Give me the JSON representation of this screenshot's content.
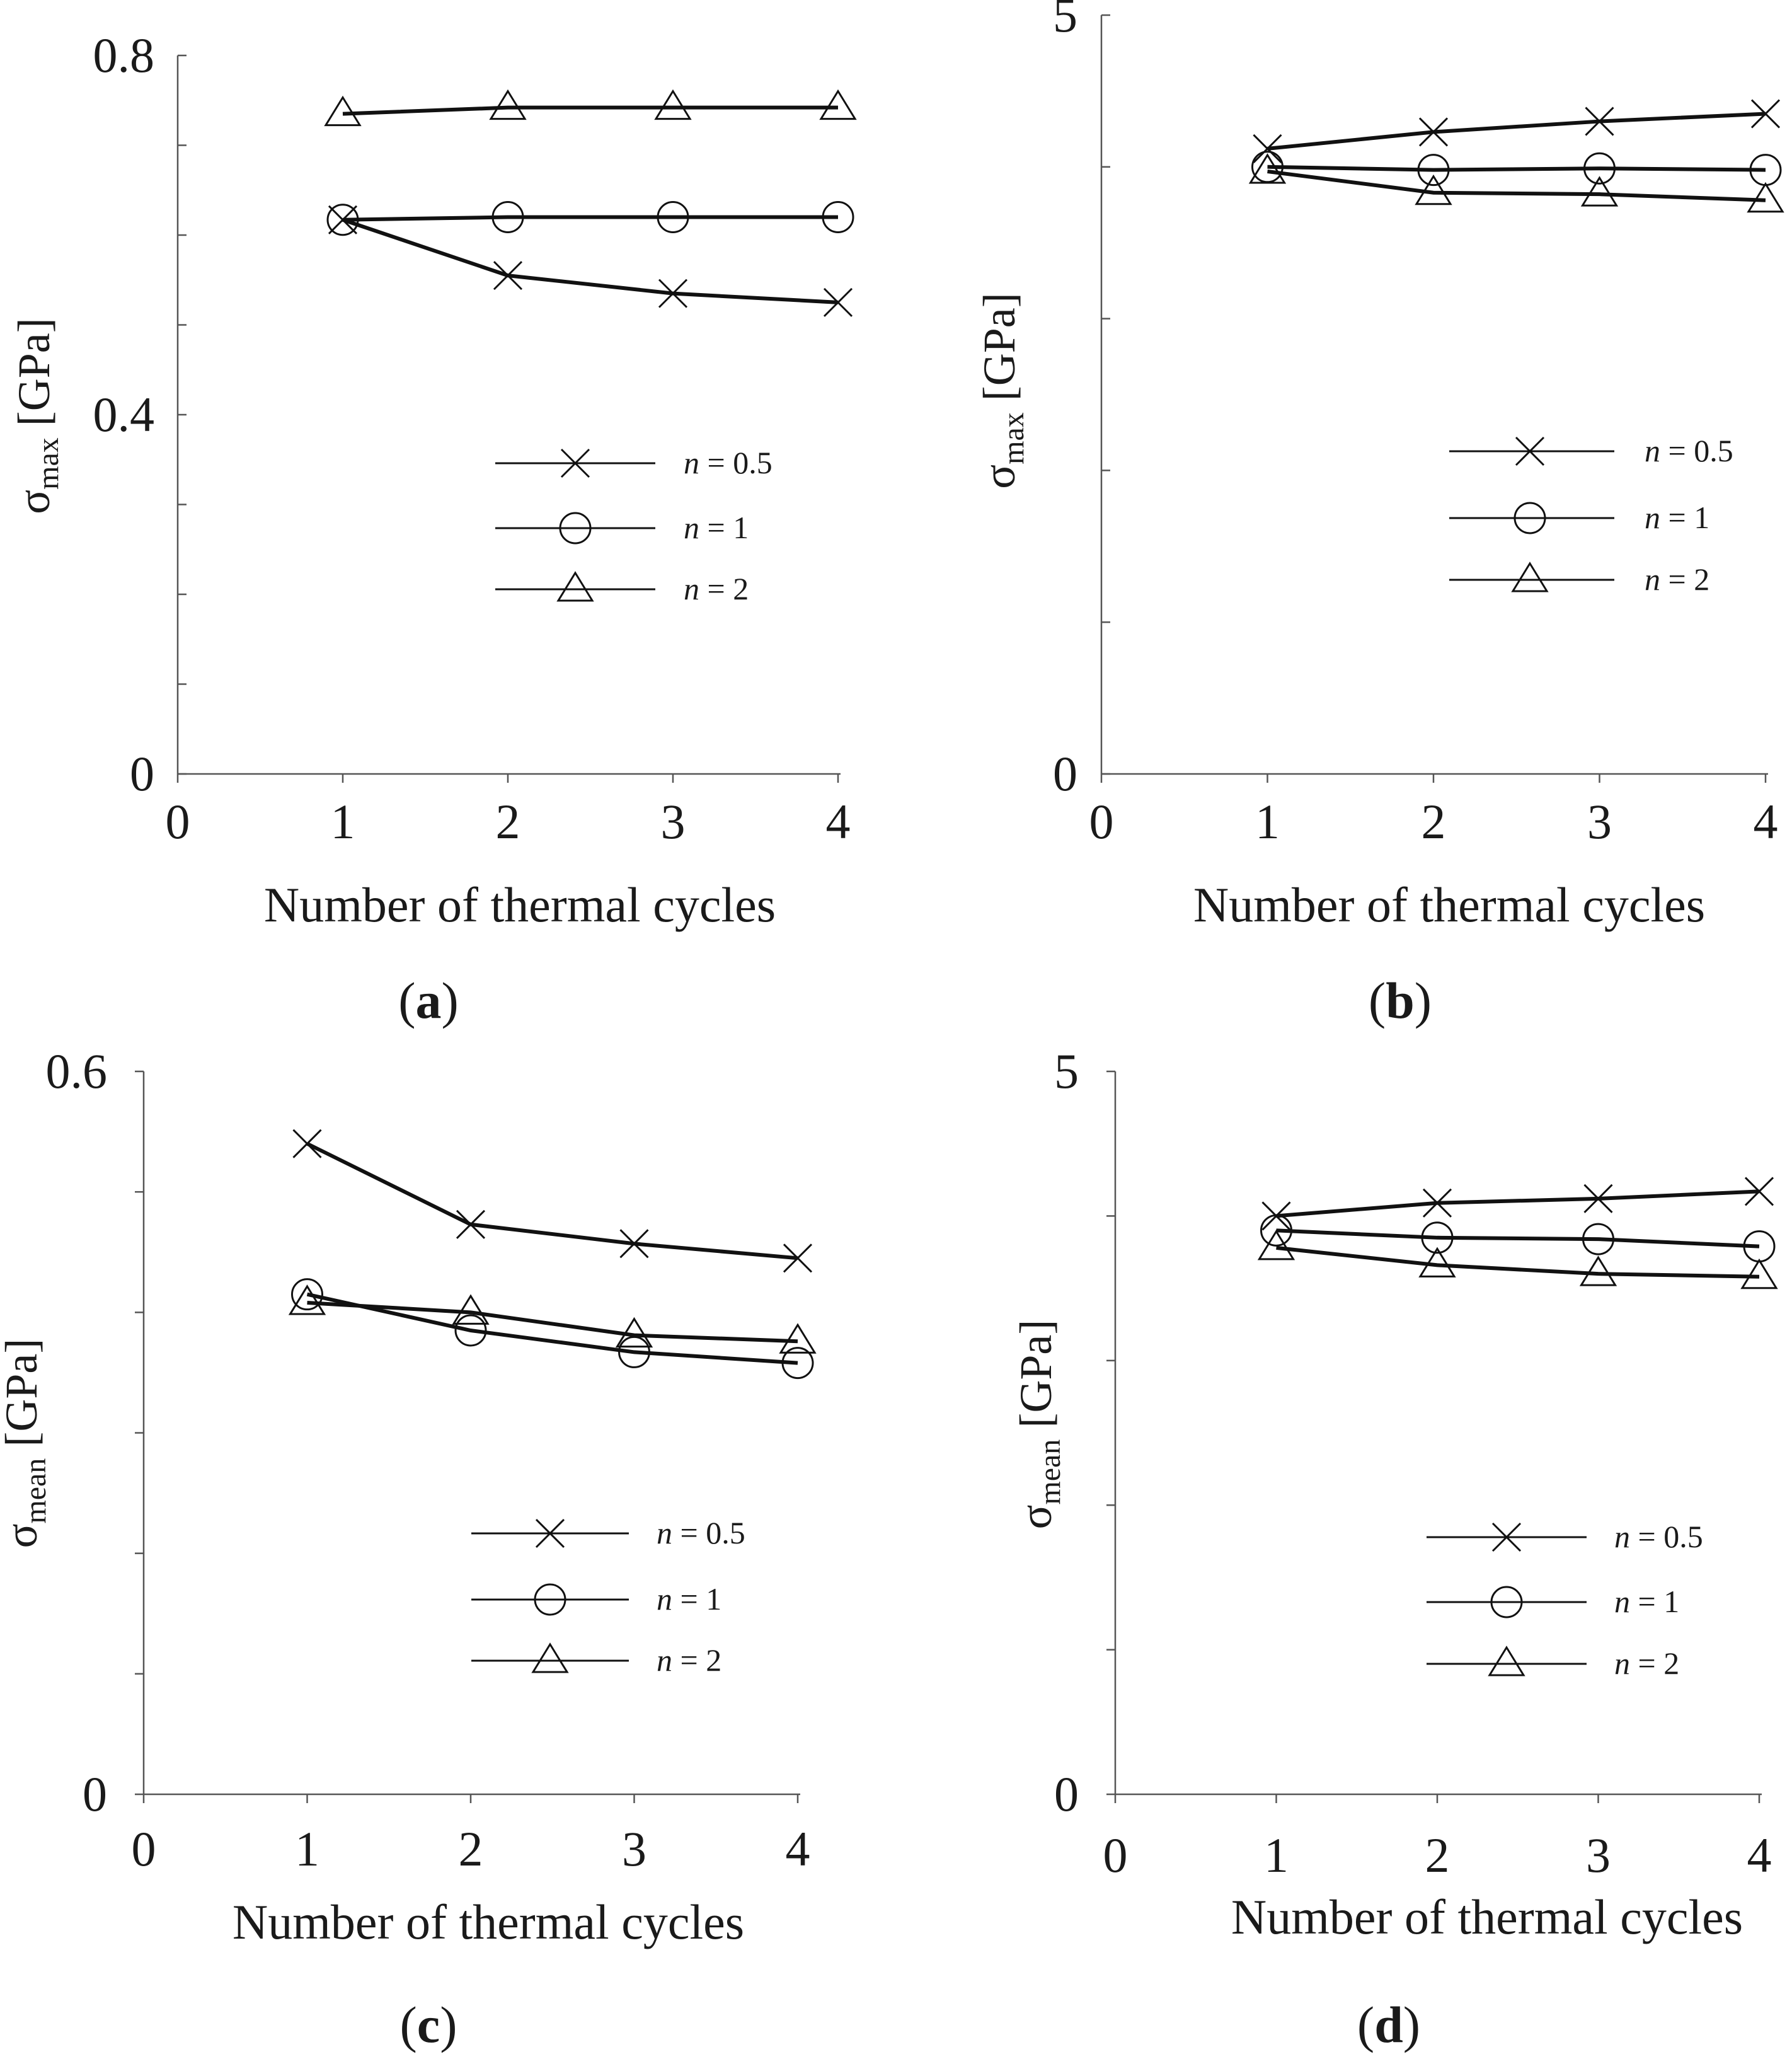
{
  "chart_data": [
    {
      "type": "line",
      "panel_label": "a",
      "xlabel": "Number of thermal cycles",
      "ylabel_symbol": "σ",
      "ylabel_sub": "max",
      "ylabel_unit": " [GPa]",
      "xlim": [
        0,
        4
      ],
      "ylim": [
        0,
        0.8
      ],
      "x_ticks": [
        "0",
        "1",
        "2",
        "3",
        "4"
      ],
      "y_tick_labels": [
        {
          "value": 0,
          "text": "0"
        },
        {
          "value": 0.4,
          "text": "0.4"
        },
        {
          "value": 0.8,
          "text": "0.8"
        }
      ],
      "y_minor_ticks": [
        0.1,
        0.2,
        0.3,
        0.5,
        0.6,
        0.7
      ],
      "x": [
        1,
        2,
        3,
        4
      ],
      "series": [
        {
          "name": "n = 0.5",
          "n_value": "0.5",
          "marker": "x",
          "values": [
            0.617,
            0.555,
            0.535,
            0.525
          ]
        },
        {
          "name": "n = 1",
          "n_value": "1",
          "marker": "circle",
          "values": [
            0.617,
            0.62,
            0.62,
            0.62
          ]
        },
        {
          "name": "n = 2",
          "n_value": "2",
          "marker": "triangle",
          "values": [
            0.735,
            0.742,
            0.742,
            0.742
          ]
        }
      ],
      "legend_position": "center-right"
    },
    {
      "type": "line",
      "panel_label": "b",
      "xlabel": "Number of thermal cycles",
      "ylabel_symbol": "σ",
      "ylabel_sub": "max",
      "ylabel_unit": " [GPa]",
      "xlim": [
        0,
        4
      ],
      "ylim": [
        0,
        5
      ],
      "x_ticks": [
        "0",
        "1",
        "2",
        "3",
        "4"
      ],
      "y_tick_labels": [
        {
          "value": 0,
          "text": "0"
        },
        {
          "value": 5,
          "text": "5"
        }
      ],
      "y_minor_ticks": [
        1,
        2,
        3,
        4
      ],
      "x": [
        1,
        2,
        3,
        4
      ],
      "series": [
        {
          "name": "n = 0.5",
          "n_value": "0.5",
          "marker": "x",
          "values": [
            4.12,
            4.23,
            4.3,
            4.35
          ]
        },
        {
          "name": "n = 1",
          "n_value": "1",
          "marker": "circle",
          "values": [
            4.0,
            3.98,
            3.99,
            3.98
          ]
        },
        {
          "name": "n = 2",
          "n_value": "2",
          "marker": "triangle",
          "values": [
            3.97,
            3.83,
            3.82,
            3.78
          ]
        }
      ],
      "legend_position": "center-right"
    },
    {
      "type": "line",
      "panel_label": "c",
      "xlabel": "Number of thermal cycles",
      "ylabel_symbol": "σ",
      "ylabel_sub": "mean",
      "ylabel_unit": " [GPa]",
      "xlim": [
        0,
        4
      ],
      "ylim": [
        0,
        0.6
      ],
      "x_ticks": [
        "0",
        "1",
        "2",
        "3",
        "4"
      ],
      "y_tick_labels": [
        {
          "value": 0,
          "text": "0"
        },
        {
          "value": 0.6,
          "text": "0.6"
        }
      ],
      "y_minor_ticks": [
        0.1,
        0.2,
        0.3,
        0.4,
        0.5
      ],
      "x": [
        1,
        2,
        3,
        4
      ],
      "series": [
        {
          "name": "n = 0.5",
          "n_value": "0.5",
          "marker": "x",
          "values": [
            0.54,
            0.473,
            0.457,
            0.445
          ]
        },
        {
          "name": "n = 1",
          "n_value": "1",
          "marker": "circle",
          "values": [
            0.415,
            0.385,
            0.367,
            0.358
          ]
        },
        {
          "name": "n = 2",
          "n_value": "2",
          "marker": "triangle",
          "values": [
            0.408,
            0.4,
            0.381,
            0.376
          ]
        }
      ],
      "legend_position": "lower-right"
    },
    {
      "type": "line",
      "panel_label": "d",
      "xlabel": "Number of thermal cycles",
      "ylabel_symbol": "σ",
      "ylabel_sub": "mean",
      "ylabel_unit": " [GPa]",
      "xlim": [
        0,
        4
      ],
      "ylim": [
        0,
        5
      ],
      "x_ticks": [
        "0",
        "1",
        "2",
        "3",
        "4"
      ],
      "y_tick_labels": [
        {
          "value": 0,
          "text": "0"
        },
        {
          "value": 5,
          "text": "5"
        }
      ],
      "y_minor_ticks": [
        1,
        2,
        3,
        4
      ],
      "x": [
        1,
        2,
        3,
        4
      ],
      "series": [
        {
          "name": "n = 0.5",
          "n_value": "0.5",
          "marker": "x",
          "values": [
            4.0,
            4.09,
            4.12,
            4.17
          ]
        },
        {
          "name": "n = 1",
          "n_value": "1",
          "marker": "circle",
          "values": [
            3.9,
            3.85,
            3.84,
            3.79
          ]
        },
        {
          "name": "n = 2",
          "n_value": "2",
          "marker": "triangle",
          "values": [
            3.78,
            3.66,
            3.6,
            3.58
          ]
        }
      ],
      "legend_position": "lower-right"
    }
  ]
}
